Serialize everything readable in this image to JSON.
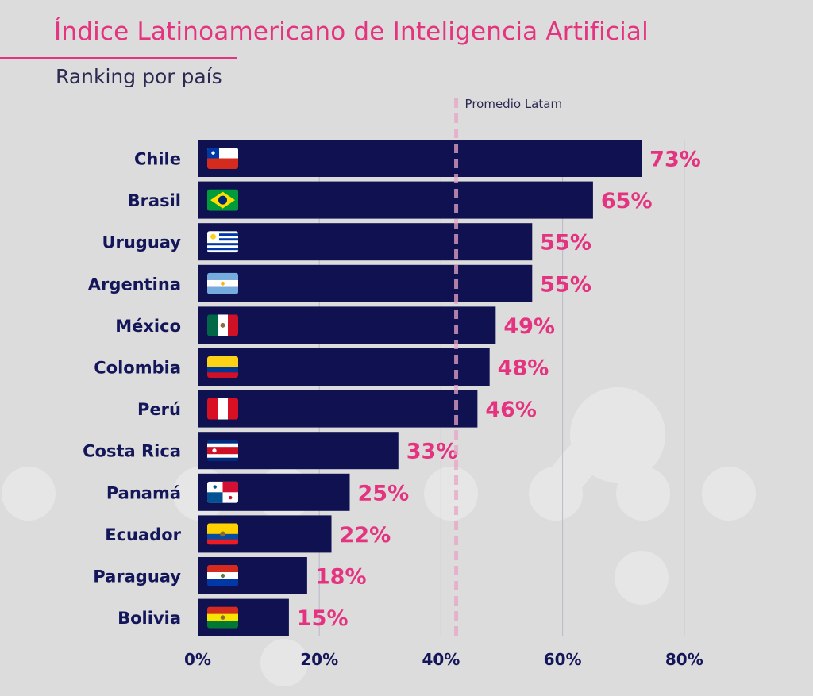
{
  "chart_data": {
    "type": "bar",
    "orientation": "horizontal",
    "title": "Índice Latinoamericano de Inteligencia Artificial",
    "subtitle": "Ranking por país",
    "categories": [
      "Chile",
      "Brasil",
      "Uruguay",
      "Argentina",
      "México",
      "Colombia",
      "Perú",
      "Costa Rica",
      "Panamá",
      "Ecuador",
      "Paraguay",
      "Bolivia"
    ],
    "values": [
      73,
      65,
      55,
      55,
      49,
      48,
      46,
      33,
      25,
      22,
      18,
      15
    ],
    "value_labels": [
      "73%",
      "65%",
      "55%",
      "55%",
      "49%",
      "48%",
      "46%",
      "33%",
      "25%",
      "22%",
      "18%",
      "15%"
    ],
    "flags": [
      "chile-flag",
      "brazil-flag",
      "uruguay-flag",
      "argentina-flag",
      "mexico-flag",
      "colombia-flag",
      "peru-flag",
      "costa-rica-flag",
      "panama-flag",
      "ecuador-flag",
      "paraguay-flag",
      "bolivia-flag"
    ],
    "xlim": [
      0,
      80
    ],
    "x_ticks": [
      0,
      20,
      40,
      60,
      80
    ],
    "x_tick_labels": [
      "0%",
      "20%",
      "40%",
      "60%",
      "80%"
    ],
    "reference_line": {
      "label": "Promedio Latam",
      "value": 42.5
    },
    "grid": "vertical",
    "colors": {
      "bar": "#0f1150",
      "value_label": "#e4337f",
      "title": "#e4337f",
      "reference": "#e7a6c6",
      "category_label": "#14165a"
    }
  }
}
